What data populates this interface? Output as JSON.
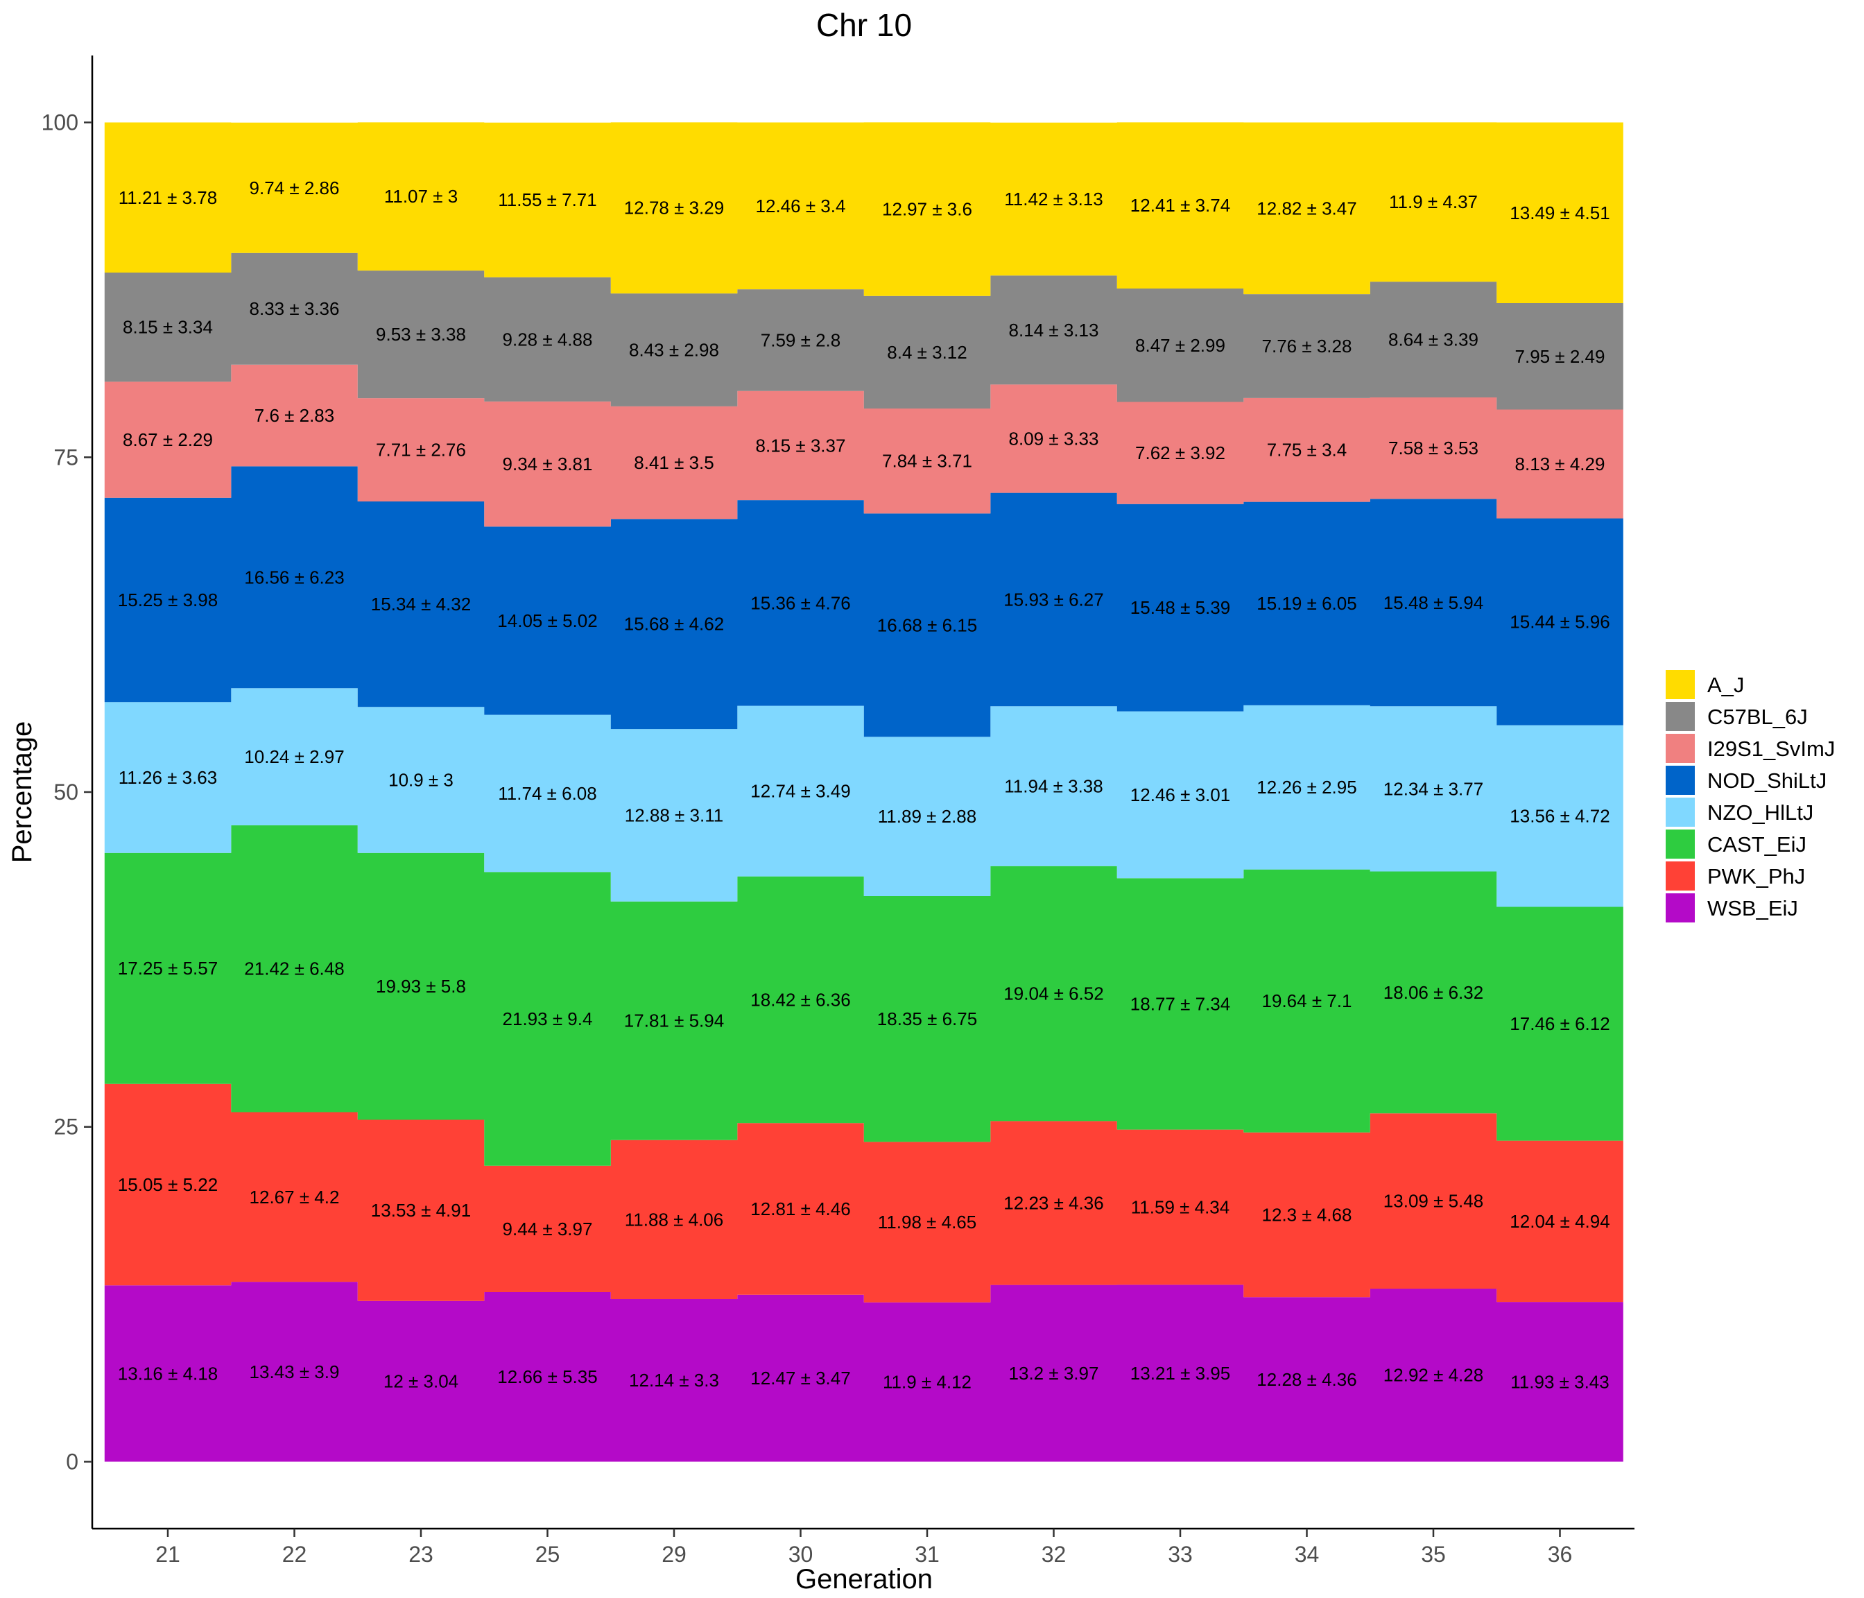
{
  "chart_data": {
    "type": "area",
    "title": "Chr 10",
    "xlabel": "Generation",
    "ylabel": "Percentage",
    "ylim": [
      -5,
      105
    ],
    "yticks": [
      0,
      25,
      50,
      75,
      100
    ],
    "grid": false,
    "legend_position": "right",
    "categories": [
      "21",
      "22",
      "23",
      "25",
      "29",
      "30",
      "31",
      "32",
      "33",
      "34",
      "35",
      "36"
    ],
    "series": [
      {
        "name": "WSB_EiJ",
        "color": "#B40AC8",
        "values": [
          13.16,
          13.43,
          12,
          12.66,
          12.14,
          12.47,
          11.9,
          13.2,
          13.21,
          12.28,
          12.92,
          11.93
        ],
        "labels": [
          "13.16 ± 4.18",
          "13.43 ± 3.9",
          "12 ± 3.04",
          "12.66 ± 5.35",
          "12.14 ± 3.3",
          "12.47 ± 3.47",
          "11.9 ± 4.12",
          "13.2 ± 3.97",
          "13.21 ± 3.95",
          "12.28 ± 4.36",
          "12.92 ± 4.28",
          "11.93 ± 3.43"
        ]
      },
      {
        "name": "PWK_PhJ",
        "color": "#FF4136",
        "values": [
          15.05,
          12.67,
          13.53,
          9.44,
          11.88,
          12.81,
          11.98,
          12.23,
          11.59,
          12.3,
          13.09,
          12.04
        ],
        "labels": [
          "15.05 ± 5.22",
          "12.67 ± 4.2",
          "13.53 ± 4.91",
          "9.44 ± 3.97",
          "11.88 ± 4.06",
          "12.81 ± 4.46",
          "11.98 ± 4.65",
          "12.23 ± 4.36",
          "11.59 ± 4.34",
          "12.3 ± 4.68",
          "13.09 ± 5.48",
          "12.04 ± 4.94"
        ]
      },
      {
        "name": "CAST_EiJ",
        "color": "#2ECC40",
        "values": [
          17.25,
          21.42,
          19.93,
          21.93,
          17.81,
          18.42,
          18.35,
          19.04,
          18.77,
          19.64,
          18.06,
          17.46
        ],
        "labels": [
          "17.25 ± 5.57",
          "21.42 ± 6.48",
          "19.93 ± 5.8",
          "21.93 ± 9.4",
          "17.81 ± 5.94",
          "18.42 ± 6.36",
          "18.35 ± 6.75",
          "19.04 ± 6.52",
          "18.77 ± 7.34",
          "19.64 ± 7.1",
          "18.06 ± 6.32",
          "17.46 ± 6.12"
        ]
      },
      {
        "name": "NZO_HlLtJ",
        "color": "#80D8FF",
        "values": [
          11.26,
          10.24,
          10.9,
          11.74,
          12.88,
          12.74,
          11.89,
          11.94,
          12.46,
          12.26,
          12.34,
          13.56
        ],
        "labels": [
          "11.26 ± 3.63",
          "10.24 ± 2.97",
          "10.9 ± 3",
          "11.74 ± 6.08",
          "12.88 ± 3.11",
          "12.74 ± 3.49",
          "11.89 ± 2.88",
          "11.94 ± 3.38",
          "12.46 ± 3.01",
          "12.26 ± 2.95",
          "12.34 ± 3.77",
          "13.56 ± 4.72"
        ]
      },
      {
        "name": "NOD_ShiLtJ",
        "color": "#0064C9",
        "values": [
          15.25,
          16.56,
          15.34,
          14.05,
          15.68,
          15.36,
          16.68,
          15.93,
          15.48,
          15.19,
          15.48,
          15.44
        ],
        "labels": [
          "15.25 ± 3.98",
          "16.56 ± 6.23",
          "15.34 ± 4.32",
          "14.05 ± 5.02",
          "15.68 ± 4.62",
          "15.36 ± 4.76",
          "16.68 ± 6.15",
          "15.93 ± 6.27",
          "15.48 ± 5.39",
          "15.19 ± 6.05",
          "15.48 ± 5.94",
          "15.44 ± 5.96"
        ]
      },
      {
        "name": "I29S1_SvImJ",
        "color": "#F08080",
        "values": [
          8.67,
          7.6,
          7.71,
          9.34,
          8.41,
          8.15,
          7.84,
          8.09,
          7.62,
          7.75,
          7.58,
          8.13
        ],
        "labels": [
          "8.67 ± 2.29",
          "7.6 ± 2.83",
          "7.71 ± 2.76",
          "9.34 ± 3.81",
          "8.41 ± 3.5",
          "8.15 ± 3.37",
          "7.84 ± 3.71",
          "8.09 ± 3.33",
          "7.62 ± 3.92",
          "7.75 ± 3.4",
          "7.58 ± 3.53",
          "8.13 ± 4.29"
        ]
      },
      {
        "name": "C57BL_6J",
        "color": "#888888",
        "values": [
          8.15,
          8.33,
          9.53,
          9.28,
          8.43,
          7.59,
          8.4,
          8.14,
          8.47,
          7.76,
          8.64,
          7.95
        ],
        "labels": [
          "8.15 ± 3.34",
          "8.33 ± 3.36",
          "9.53 ± 3.38",
          "9.28 ± 4.88",
          "8.43 ± 2.98",
          "7.59 ± 2.8",
          "8.4 ± 3.12",
          "8.14 ± 3.13",
          "8.47 ± 2.99",
          "7.76 ± 3.28",
          "8.64 ± 3.39",
          "7.95 ± 2.49"
        ]
      },
      {
        "name": "A_J",
        "color": "#FFDC00",
        "values": [
          11.21,
          9.74,
          11.07,
          11.55,
          12.78,
          12.46,
          12.97,
          11.42,
          12.41,
          12.82,
          11.9,
          13.49
        ],
        "labels": [
          "11.21 ± 3.78",
          "9.74 ± 2.86",
          "11.07 ± 3",
          "11.55 ± 7.71",
          "12.78 ± 3.29",
          "12.46 ± 3.4",
          "12.97 ± 3.6",
          "11.42 ± 3.13",
          "12.41 ± 3.74",
          "12.82 ± 3.47",
          "11.9 ± 4.37",
          "13.49 ± 4.51"
        ]
      }
    ],
    "legend": [
      "A_J",
      "C57BL_6J",
      "I29S1_SvImJ",
      "NOD_ShiLtJ",
      "NZO_HlLtJ",
      "CAST_EiJ",
      "PWK_PhJ",
      "WSB_EiJ"
    ]
  }
}
